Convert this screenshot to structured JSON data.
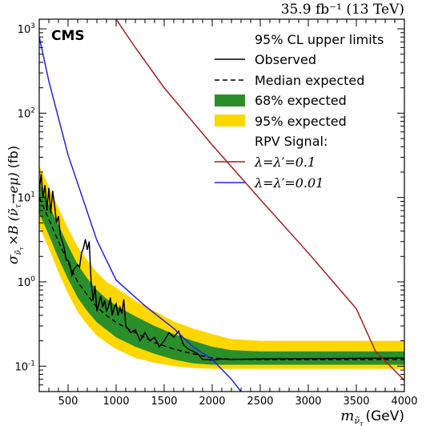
{
  "chart_data": {
    "type": "line",
    "title": "",
    "lumi_label": "35.9 fb⁻¹ (13 TeV)",
    "experiment_label": "CMS",
    "xlabel": "m_{ν̃_τ} (GeV)",
    "xlabel_parts": {
      "m": "m",
      "sub": "ν̃",
      "subsub": "τ",
      "unit": "(GeV)"
    },
    "ylabel": "σ_{ν̃_τ} ×B (ν̃_τ→eμ) (fb)",
    "ylabel_parts": {
      "sigma": "σ",
      "times": "×B (",
      "nu": "ν̃",
      "tau": "τ",
      "arrow": "→eμ)",
      "unit": "(fb)"
    },
    "xlim": [
      200,
      4000
    ],
    "ylim": [
      0.05,
      1300
    ],
    "yscale": "log",
    "x_ticks": [
      500,
      1000,
      1500,
      2000,
      2500,
      3000,
      3500,
      4000
    ],
    "x_tick_labels": [
      "500",
      "1000",
      "1500",
      "2000",
      "2500",
      "3000",
      "3500",
      "4000"
    ],
    "y_ticks": [
      0.1,
      1,
      10,
      100,
      1000
    ],
    "y_tick_base": "10",
    "y_tick_exps": [
      "-1",
      "0",
      "1",
      "2",
      "3"
    ],
    "grid": false,
    "legend_placement": "top-right",
    "legend": {
      "header": "95% CL upper limits",
      "observed": "Observed",
      "expected": "Median expected",
      "band68": "68% expected",
      "band95": "95% expected",
      "signal_header": "RPV Signal:",
      "signal1": "λ=λ′=0.1",
      "signal2": "λ=λ′=0.01"
    },
    "colors": {
      "observed": "#000000",
      "expected": "#000000",
      "band68": "#2a8f2a",
      "band95": "#ffd700",
      "signal1": "#a31f1f",
      "signal2": "#2222ee"
    },
    "expected": {
      "x": [
        200,
        300,
        400,
        500,
        600,
        700,
        800,
        900,
        1000,
        1200,
        1400,
        1600,
        1800,
        2000,
        2200,
        2500,
        3000,
        3500,
        4000
      ],
      "y": [
        10,
        5.5,
        3.0,
        1.7,
        1.0,
        0.7,
        0.5,
        0.4,
        0.33,
        0.25,
        0.19,
        0.16,
        0.14,
        0.125,
        0.121,
        0.12,
        0.12,
        0.12,
        0.12
      ]
    },
    "band68": {
      "x": [
        200,
        300,
        400,
        500,
        600,
        700,
        800,
        900,
        1000,
        1200,
        1400,
        1600,
        1800,
        2000,
        2200,
        2500,
        3000,
        3500,
        4000
      ],
      "lo": [
        6.5,
        3.6,
        1.9,
        1.08,
        0.65,
        0.45,
        0.33,
        0.27,
        0.22,
        0.17,
        0.14,
        0.12,
        0.108,
        0.104,
        0.104,
        0.104,
        0.104,
        0.104,
        0.104
      ],
      "hi": [
        15,
        8.2,
        4.7,
        2.7,
        1.6,
        1.1,
        0.8,
        0.63,
        0.52,
        0.39,
        0.3,
        0.24,
        0.2,
        0.17,
        0.155,
        0.15,
        0.15,
        0.15,
        0.15
      ]
    },
    "band95": {
      "x": [
        200,
        300,
        400,
        500,
        600,
        700,
        800,
        900,
        1000,
        1200,
        1400,
        1600,
        1800,
        2000,
        2200,
        2500,
        3000,
        3500,
        4000
      ],
      "lo": [
        4.5,
        2.5,
        1.3,
        0.72,
        0.44,
        0.31,
        0.23,
        0.19,
        0.16,
        0.125,
        0.11,
        0.1,
        0.095,
        0.093,
        0.093,
        0.093,
        0.093,
        0.093,
        0.093
      ],
      "hi": [
        24,
        13.5,
        7.5,
        4.3,
        2.6,
        1.8,
        1.3,
        1.0,
        0.85,
        0.6,
        0.45,
        0.34,
        0.28,
        0.24,
        0.21,
        0.2,
        0.2,
        0.2,
        0.2
      ]
    },
    "observed": {
      "x": [
        200,
        220,
        240,
        260,
        280,
        300,
        320,
        340,
        360,
        380,
        400,
        420,
        440,
        460,
        480,
        500,
        520,
        540,
        560,
        580,
        600,
        620,
        640,
        660,
        680,
        700,
        720,
        740,
        760,
        780,
        800,
        820,
        840,
        860,
        880,
        900,
        920,
        940,
        960,
        980,
        1000,
        1020,
        1040,
        1060,
        1080,
        1100,
        1150,
        1200,
        1250,
        1300,
        1350,
        1400,
        1450,
        1500,
        1550,
        1600,
        1650,
        1700,
        1750,
        1800,
        1850,
        1900,
        1950,
        2000,
        2100,
        2200,
        2300,
        2500,
        3000,
        3500,
        4000
      ],
      "y": [
        12,
        19,
        10,
        14,
        7,
        13,
        6.5,
        12,
        8,
        5,
        6,
        3.5,
        3.0,
        2.5,
        1.8,
        1.8,
        1.6,
        1.2,
        1.4,
        1.5,
        1.6,
        1.5,
        2.2,
        2.5,
        3.2,
        2.4,
        3.0,
        1.0,
        0.6,
        0.9,
        0.45,
        0.55,
        0.68,
        0.5,
        0.6,
        0.45,
        0.5,
        0.65,
        0.4,
        0.5,
        0.55,
        0.4,
        0.5,
        0.42,
        0.62,
        0.3,
        0.25,
        0.27,
        0.2,
        0.25,
        0.2,
        0.22,
        0.17,
        0.2,
        0.25,
        0.22,
        0.26,
        0.18,
        0.16,
        0.15,
        0.14,
        0.12,
        0.12,
        0.118,
        0.122,
        0.12,
        0.121,
        0.122,
        0.123,
        0.124,
        0.125
      ]
    },
    "signal1": {
      "x": [
        1000,
        1200,
        1500,
        2000,
        2500,
        3000,
        3500,
        3700,
        4000
      ],
      "y": [
        1300,
        600,
        200,
        42,
        9.5,
        2.2,
        0.48,
        0.15,
        0.068
      ]
    },
    "signal2": {
      "x": [
        200,
        300,
        500,
        800,
        1000,
        1300,
        1600,
        1800,
        2000,
        2200,
        2300
      ],
      "y": [
        800,
        240,
        32,
        3.1,
        1.05,
        0.52,
        0.28,
        0.17,
        0.12,
        0.07,
        0.05
      ]
    }
  }
}
